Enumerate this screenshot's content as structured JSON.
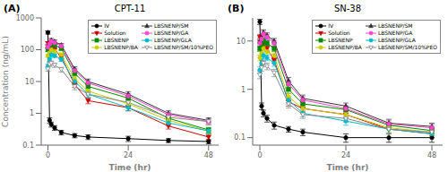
{
  "chart_data": [
    {
      "type": "line",
      "title": "CPT-11",
      "annotations": [
        "(A)"
      ],
      "xlabel": "Time (hr)",
      "ylabel": "Concentration (ng/mL)",
      "x": [
        0,
        0.5,
        1,
        2,
        4,
        8,
        12,
        24,
        36,
        48
      ],
      "xlim": [
        -2,
        51
      ],
      "xticks": [
        0,
        24,
        48
      ],
      "ylim": [
        0.1,
        1000
      ],
      "yticks": [
        0.1,
        1,
        10,
        100,
        1000
      ],
      "log": "y",
      "grid": false,
      "legend": "upper right",
      "series": [
        {
          "name": "IV",
          "color": "#000000",
          "marker": "circle",
          "values": [
            350,
            0.6,
            0.45,
            0.35,
            0.25,
            0.2,
            0.18,
            0.16,
            0.14,
            0.13
          ],
          "yerr": [
            40,
            0.12,
            0.08,
            0.06,
            0.04,
            0.03,
            0.03,
            0.03,
            0.02,
            0.02
          ]
        },
        {
          "name": "Solution",
          "color": "#cc0000",
          "marker": "triangle-down",
          "values": [
            160,
            150,
            130,
            100,
            60,
            8,
            2.5,
            1.5,
            0.4,
            0.18
          ],
          "yerr": [
            20,
            18,
            15,
            12,
            8,
            1.5,
            0.5,
            0.3,
            0.08,
            0.04
          ]
        },
        {
          "name": "LBSNENP",
          "color": "#008800",
          "marker": "square",
          "values": [
            100,
            120,
            150,
            140,
            110,
            18,
            7,
            3,
            0.7,
            0.3
          ],
          "yerr": [
            12,
            15,
            18,
            16,
            13,
            3,
            1.5,
            0.7,
            0.14,
            0.06
          ]
        },
        {
          "name": "LBSNENP/BA",
          "color": "#cccc00",
          "marker": "circle",
          "values": [
            65,
            80,
            100,
            90,
            70,
            12,
            5,
            2,
            0.6,
            0.28
          ],
          "yerr": [
            8,
            10,
            13,
            11,
            9,
            2,
            1,
            0.4,
            0.12,
            0.06
          ]
        },
        {
          "name": "LBSNENP/SM",
          "color": "#333333",
          "marker": "triangle-up",
          "values": [
            130,
            160,
            200,
            180,
            140,
            25,
            10,
            4,
            1.0,
            0.6
          ],
          "yerr": [
            16,
            20,
            25,
            22,
            17,
            4,
            2,
            0.8,
            0.2,
            0.12
          ]
        },
        {
          "name": "LBSNENP/GA",
          "color": "#ff44cc",
          "marker": "circle",
          "values": [
            120,
            150,
            185,
            165,
            130,
            22,
            9,
            3.5,
            0.9,
            0.55
          ],
          "yerr": [
            15,
            18,
            23,
            20,
            16,
            3.5,
            1.8,
            0.7,
            0.18,
            0.11
          ]
        },
        {
          "name": "LBSNENP/GLA",
          "color": "#00bbcc",
          "marker": "circle",
          "values": [
            30,
            50,
            70,
            65,
            50,
            10,
            4,
            1.5,
            0.5,
            0.28
          ],
          "yerr": [
            5,
            7,
            9,
            8,
            7,
            2,
            0.8,
            0.3,
            0.1,
            0.06
          ]
        },
        {
          "name": "LBSNENP/SM/10%PEO",
          "color": "#888888",
          "marker": "triangle-down-open",
          "values": [
            25,
            35,
            38,
            33,
            24,
            7,
            4,
            2.2,
            0.75,
            0.55
          ],
          "yerr": [
            4,
            5,
            6,
            5,
            4,
            1.5,
            0.9,
            0.5,
            0.15,
            0.12
          ]
        }
      ]
    },
    {
      "type": "line",
      "title": "SN-38",
      "annotations": [
        "(B)"
      ],
      "xlabel": "Time (hr)",
      "x": [
        0,
        0.5,
        1,
        2,
        4,
        8,
        12,
        24,
        36,
        48
      ],
      "xlim": [
        -2,
        51
      ],
      "xticks": [
        0,
        24,
        48
      ],
      "ylim": [
        0.07,
        30
      ],
      "yticks": [
        0.1,
        1,
        10
      ],
      "log": "y",
      "grid": false,
      "legend": "upper right",
      "series": [
        {
          "name": "IV",
          "color": "#000000",
          "marker": "circle",
          "values": [
            25,
            0.45,
            0.32,
            0.25,
            0.18,
            0.15,
            0.13,
            0.1,
            0.1,
            0.1
          ],
          "yerr": [
            3,
            0.07,
            0.05,
            0.04,
            0.03,
            0.02,
            0.02,
            0.02,
            0.02,
            0.02
          ]
        },
        {
          "name": "Solution",
          "color": "#cc0000",
          "marker": "triangle-down",
          "values": [
            12,
            10,
            9,
            7,
            4,
            0.55,
            0.4,
            0.3,
            0.15,
            0.12
          ],
          "yerr": [
            1.5,
            1.2,
            1,
            0.8,
            0.5,
            0.1,
            0.07,
            0.05,
            0.03,
            0.02
          ]
        },
        {
          "name": "LBSNENP",
          "color": "#008800",
          "marker": "square",
          "values": [
            7,
            8,
            10,
            9,
            7,
            1.0,
            0.5,
            0.38,
            0.18,
            0.14
          ],
          "yerr": [
            0.9,
            1,
            1.3,
            1.1,
            0.9,
            0.18,
            0.09,
            0.06,
            0.03,
            0.03
          ]
        },
        {
          "name": "LBSNENP/BA",
          "color": "#cccc00",
          "marker": "circle",
          "values": [
            4.5,
            5.5,
            7,
            6,
            5,
            0.7,
            0.4,
            0.3,
            0.16,
            0.13
          ],
          "yerr": [
            0.6,
            0.7,
            0.9,
            0.8,
            0.7,
            0.12,
            0.07,
            0.05,
            0.03,
            0.02
          ]
        },
        {
          "name": "LBSNENP/SM",
          "color": "#333333",
          "marker": "triangle-up",
          "values": [
            10,
            12,
            15,
            13,
            10,
            1.5,
            0.65,
            0.45,
            0.2,
            0.17
          ],
          "yerr": [
            1.3,
            1.5,
            2,
            1.7,
            1.3,
            0.25,
            0.11,
            0.07,
            0.04,
            0.03
          ]
        },
        {
          "name": "LBSNENP/GA",
          "color": "#ff44cc",
          "marker": "circle",
          "values": [
            9,
            11,
            14,
            12,
            9,
            1.3,
            0.6,
            0.4,
            0.19,
            0.16
          ],
          "yerr": [
            1.2,
            1.4,
            1.8,
            1.5,
            1.2,
            0.22,
            0.1,
            0.06,
            0.04,
            0.03
          ]
        },
        {
          "name": "LBSNENP/GLA",
          "color": "#00bbcc",
          "marker": "circle",
          "values": [
            2.5,
            3.5,
            5,
            4.5,
            3.5,
            0.6,
            0.32,
            0.22,
            0.15,
            0.12
          ],
          "yerr": [
            0.4,
            0.5,
            0.7,
            0.6,
            0.5,
            0.1,
            0.05,
            0.04,
            0.03,
            0.02
          ]
        },
        {
          "name": "LBSNENP/SM/10%PEO",
          "color": "#888888",
          "marker": "triangle-down-open",
          "values": [
            2.0,
            2.8,
            3.5,
            3.0,
            2.2,
            0.5,
            0.3,
            0.25,
            0.15,
            0.13
          ],
          "yerr": [
            0.35,
            0.45,
            0.55,
            0.48,
            0.38,
            0.09,
            0.05,
            0.04,
            0.03,
            0.02
          ]
        }
      ]
    }
  ]
}
